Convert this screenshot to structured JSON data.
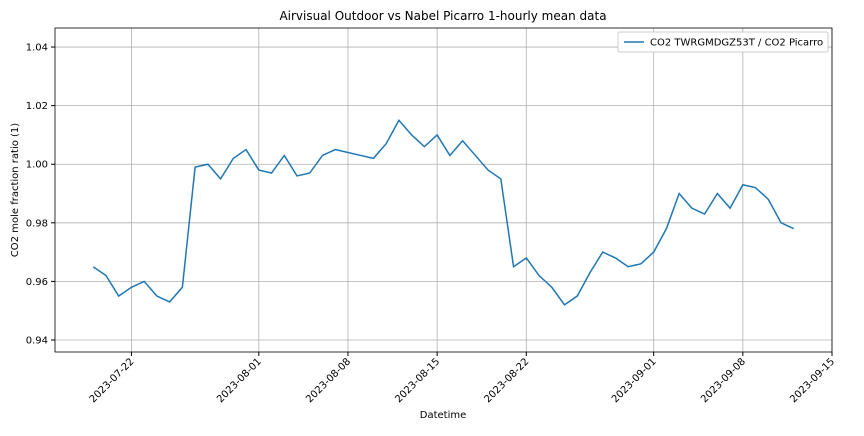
{
  "chart_data": {
    "type": "line",
    "title": "Airvisual Outdoor vs Nabel Picarro 1-hourly mean data",
    "xlabel": "Datetime",
    "ylabel": "CO2 mole fraction ratio (1)",
    "x": [
      "2023-07-19",
      "2023-07-20",
      "2023-07-21",
      "2023-07-22",
      "2023-07-23",
      "2023-07-24",
      "2023-07-25",
      "2023-07-26",
      "2023-07-27",
      "2023-07-28",
      "2023-07-29",
      "2023-07-30",
      "2023-07-31",
      "2023-08-01",
      "2023-08-02",
      "2023-08-03",
      "2023-08-04",
      "2023-08-05",
      "2023-08-06",
      "2023-08-07",
      "2023-08-08",
      "2023-08-09",
      "2023-08-10",
      "2023-08-11",
      "2023-08-12",
      "2023-08-13",
      "2023-08-14",
      "2023-08-15",
      "2023-08-16",
      "2023-08-17",
      "2023-08-18",
      "2023-08-19",
      "2023-08-20",
      "2023-08-21",
      "2023-08-22",
      "2023-08-23",
      "2023-08-24",
      "2023-08-25",
      "2023-08-26",
      "2023-08-27",
      "2023-08-28",
      "2023-08-29",
      "2023-08-30",
      "2023-08-31",
      "2023-09-01",
      "2023-09-02",
      "2023-09-03",
      "2023-09-04",
      "2023-09-05",
      "2023-09-06",
      "2023-09-07",
      "2023-09-08",
      "2023-09-09",
      "2023-09-10",
      "2023-09-11",
      "2023-09-12"
    ],
    "series": [
      {
        "name": "CO2 TWRGMDGZ53T / CO2 Picarro",
        "color": "#1f77b4",
        "values": [
          0.965,
          0.962,
          0.955,
          0.958,
          0.96,
          0.955,
          0.953,
          0.958,
          0.999,
          1.0,
          0.995,
          1.002,
          1.005,
          0.998,
          0.997,
          1.003,
          0.996,
          0.997,
          1.003,
          1.005,
          1.004,
          1.003,
          1.002,
          1.007,
          1.015,
          1.01,
          1.006,
          1.01,
          1.003,
          1.008,
          1.003,
          0.998,
          0.995,
          0.965,
          0.968,
          0.962,
          0.958,
          0.952,
          0.955,
          0.963,
          0.97,
          0.968,
          0.965,
          0.966,
          0.97,
          0.978,
          0.99,
          0.985,
          0.983,
          0.99,
          0.985,
          0.993,
          0.992,
          0.988,
          0.98,
          0.978
        ]
      }
    ],
    "xlim": [
      "2023-07-16",
      "2023-09-15"
    ],
    "xticks": [
      "2023-07-22",
      "2023-08-01",
      "2023-08-08",
      "2023-08-15",
      "2023-08-22",
      "2023-09-01",
      "2023-09-08",
      "2023-09-15"
    ],
    "ylim": [
      0.9359,
      1.0465
    ],
    "yticks": [
      0.94,
      0.96,
      0.98,
      {
        "value": 1,
        "label": "1.00"
      },
      1.02,
      1.04
    ],
    "grid": true,
    "legend": "upper right"
  }
}
